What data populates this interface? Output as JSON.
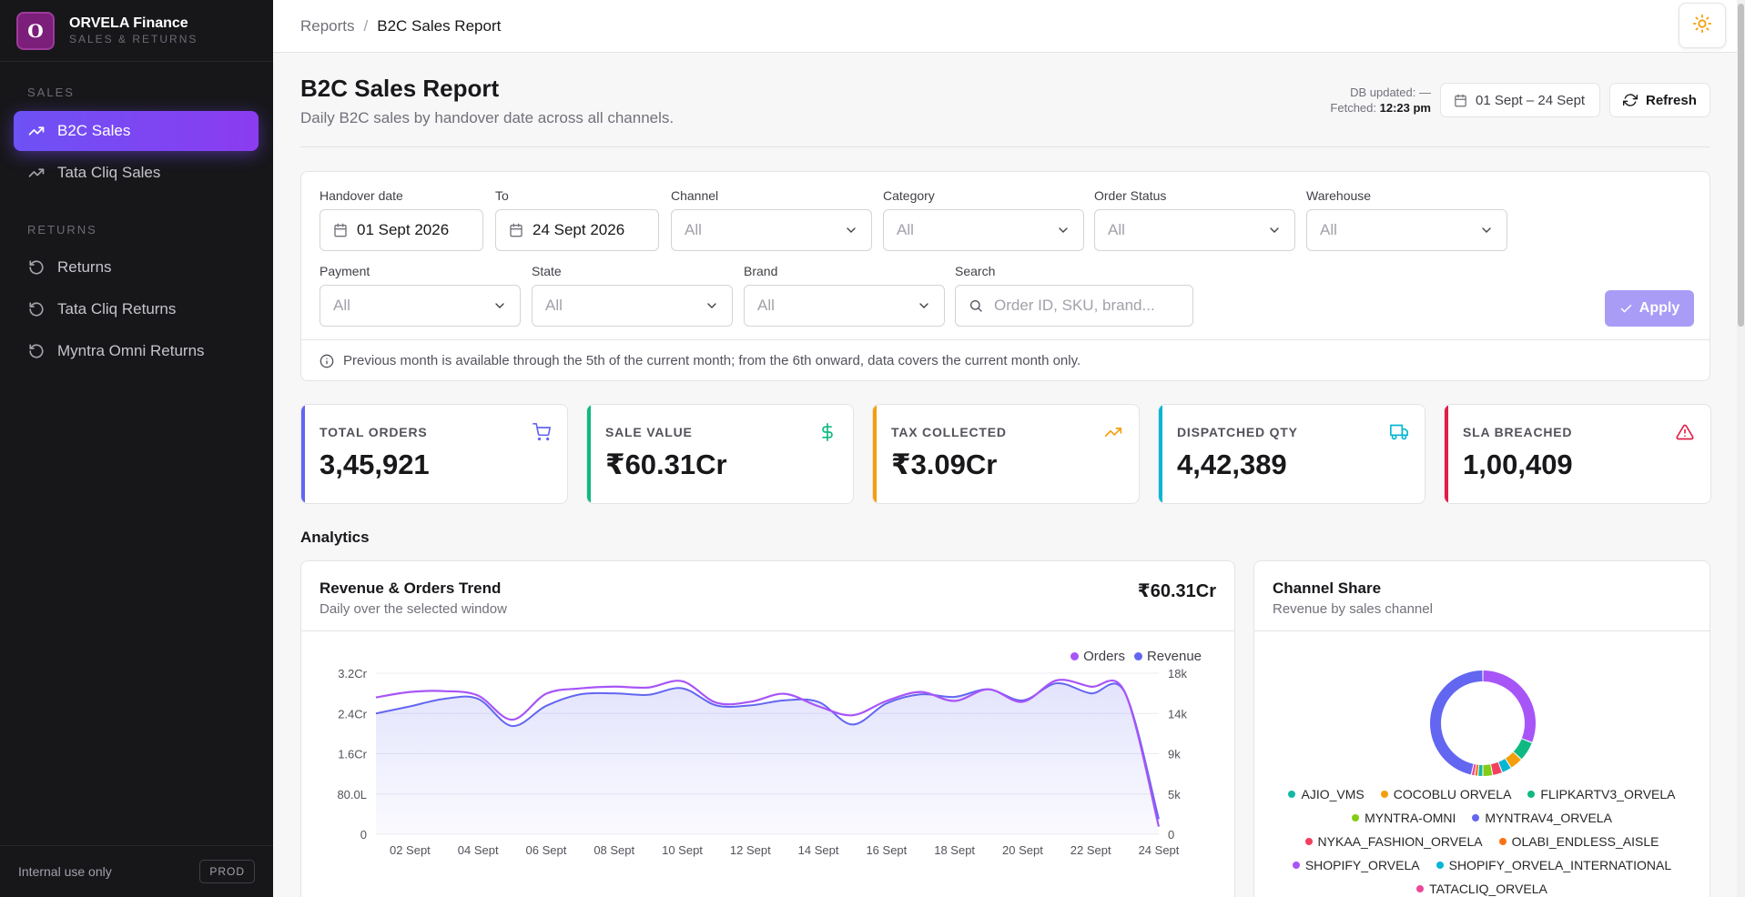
{
  "app": {
    "brand_letter": "O",
    "brand_name": "ORVELA Finance",
    "brand_sub": "SALES & RETURNS"
  },
  "sidebar": {
    "sales_label": "SALES",
    "returns_label": "RETURNS",
    "items": [
      {
        "label": "B2C Sales",
        "icon": "trending-up-icon",
        "active": true
      },
      {
        "label": "Tata Cliq Sales",
        "icon": "trending-up-icon",
        "active": false
      },
      {
        "label": "Returns",
        "icon": "rotate-ccw-icon",
        "active": false
      },
      {
        "label": "Tata Cliq Returns",
        "icon": "rotate-ccw-icon",
        "active": false
      },
      {
        "label": "Myntra Omni Returns",
        "icon": "rotate-ccw-icon",
        "active": false
      }
    ],
    "footer_text": "Internal use only",
    "env_badge": "PROD"
  },
  "breadcrumb": {
    "parent": "Reports",
    "separator": "/",
    "current": "B2C Sales Report"
  },
  "header": {
    "title": "B2C Sales Report",
    "subtitle": "Daily B2C sales by handover date across all channels.",
    "db_updated_label": "DB updated:",
    "db_updated_value": "—",
    "fetched_label": "Fetched:",
    "fetched_value": "12:23 pm",
    "date_range": "01 Sept – 24 Sept",
    "refresh_label": "Refresh"
  },
  "filters": {
    "handover_label": "Handover date",
    "handover_value": "01 Sept 2026",
    "to_label": "To",
    "to_value": "24 Sept 2026",
    "channel_label": "Channel",
    "channel_value": "All",
    "category_label": "Category",
    "category_value": "All",
    "order_status_label": "Order Status",
    "order_status_value": "All",
    "warehouse_label": "Warehouse",
    "warehouse_value": "All",
    "payment_label": "Payment",
    "payment_value": "All",
    "state_label": "State",
    "state_value": "All",
    "brand_label": "Brand",
    "brand_value": "All",
    "search_label": "Search",
    "search_placeholder": "Order ID, SKU, brand...",
    "apply_label": "Apply",
    "note": "Previous month is available through the 5th of the current month; from the 6th onward, data covers the current month only."
  },
  "kpis": [
    {
      "label": "TOTAL ORDERS",
      "value": "3,45,921",
      "color": "#6366f1",
      "icon": "cart-icon"
    },
    {
      "label": "SALE VALUE",
      "value": "₹60.31Cr",
      "color": "#10b981",
      "icon": "dollar-icon"
    },
    {
      "label": "TAX COLLECTED",
      "value": "₹3.09Cr",
      "color": "#f59e0b",
      "icon": "trending-up-icon"
    },
    {
      "label": "DISPATCHED QTY",
      "value": "4,42,389",
      "color": "#06b6d4",
      "icon": "truck-icon"
    },
    {
      "label": "SLA BREACHED",
      "value": "1,00,409",
      "color": "#e11d48",
      "icon": "alert-triangle-icon"
    }
  ],
  "analytics_title": "Analytics",
  "revenue_card": {
    "title": "Revenue & Orders Trend",
    "subtitle": "Daily over the selected window",
    "total": "₹60.31Cr"
  },
  "channel_card": {
    "title": "Channel Share",
    "subtitle": "Revenue by sales channel"
  },
  "chart_data": [
    {
      "type": "line",
      "title": "Revenue & Orders Trend",
      "x": [
        "01 Sept",
        "02 Sept",
        "03 Sept",
        "04 Sept",
        "05 Sept",
        "06 Sept",
        "07 Sept",
        "08 Sept",
        "09 Sept",
        "10 Sept",
        "11 Sept",
        "12 Sept",
        "13 Sept",
        "14 Sept",
        "15 Sept",
        "16 Sept",
        "17 Sept",
        "18 Sept",
        "19 Sept",
        "20 Sept",
        "21 Sept",
        "22 Sept",
        "23 Sept",
        "24 Sept"
      ],
      "x_ticks": [
        "02 Sept",
        "04 Sept",
        "06 Sept",
        "08 Sept",
        "10 Sept",
        "12 Sept",
        "14 Sept",
        "16 Sept",
        "18 Sept",
        "20 Sept",
        "22 Sept",
        "24 Sept"
      ],
      "y_left_ticks": [
        "0",
        "80.0L",
        "1.6Cr",
        "2.4Cr",
        "3.2Cr"
      ],
      "y_left_range": [
        0,
        3.2
      ],
      "y_right_ticks": [
        "0",
        "5k",
        "9k",
        "14k",
        "18k"
      ],
      "y_right_range": [
        0,
        18000
      ],
      "legend_position": "top-right",
      "series": [
        {
          "name": "Orders",
          "axis": "right",
          "color": "#a855f7",
          "values": [
            15300,
            15900,
            16000,
            15500,
            12800,
            15700,
            16300,
            16500,
            16400,
            17100,
            14700,
            14800,
            15700,
            14300,
            13300,
            14900,
            15900,
            14900,
            16200,
            14800,
            17200,
            16500,
            15900,
            850
          ]
        },
        {
          "name": "Revenue",
          "axis": "left",
          "color": "#6366f1",
          "values": [
            2.4,
            2.54,
            2.69,
            2.69,
            2.15,
            2.55,
            2.78,
            2.8,
            2.77,
            2.9,
            2.56,
            2.56,
            2.66,
            2.63,
            2.18,
            2.6,
            2.78,
            2.73,
            2.88,
            2.66,
            3.0,
            2.8,
            2.82,
            0.3
          ]
        }
      ]
    },
    {
      "type": "pie",
      "title": "Channel Share",
      "labels": [
        "SHOPIFY_ORVELA",
        "FLIPKARTV3_ORVELA",
        "COCOBLU ORVELA",
        "SHOPIFY_ORVELA_INTERNATIONAL",
        "NYKAA_FASHION_ORVELA",
        "MYNTRA-OMNI",
        "AJIO_VMS",
        "OLABI_ENDLESS_AISLE",
        "TATACLIQ_ORVELA",
        "MYNTRAV4_ORVELA"
      ],
      "values": [
        31,
        6,
        4,
        3,
        3,
        3,
        1.5,
        1,
        1,
        46.5
      ],
      "colors": [
        "#a855f7",
        "#10b981",
        "#f59e0b",
        "#06b6d4",
        "#f43f5e",
        "#84cc16",
        "#14b8a6",
        "#f97316",
        "#ec4899",
        "#6366f1"
      ],
      "legend": [
        [
          "AJIO_VMS",
          "COCOBLU ORVELA",
          "FLIPKARTV3_ORVELA"
        ],
        [
          "MYNTRA-OMNI",
          "MYNTRAV4_ORVELA"
        ],
        [
          "NYKAA_FASHION_ORVELA",
          "OLABI_ENDLESS_AISLE"
        ],
        [
          "SHOPIFY_ORVELA",
          "SHOPIFY_ORVELA_INTERNATIONAL"
        ],
        [
          "TATACLIQ_ORVELA"
        ]
      ],
      "legend_colors": {
        "AJIO_VMS": "#14b8a6",
        "COCOBLU ORVELA": "#f59e0b",
        "FLIPKARTV3_ORVELA": "#10b981",
        "MYNTRA-OMNI": "#84cc16",
        "MYNTRAV4_ORVELA": "#6366f1",
        "NYKAA_FASHION_ORVELA": "#f43f5e",
        "OLABI_ENDLESS_AISLE": "#f97316",
        "SHOPIFY_ORVELA": "#a855f7",
        "SHOPIFY_ORVELA_INTERNATIONAL": "#06b6d4",
        "TATACLIQ_ORVELA": "#ec4899"
      }
    }
  ]
}
